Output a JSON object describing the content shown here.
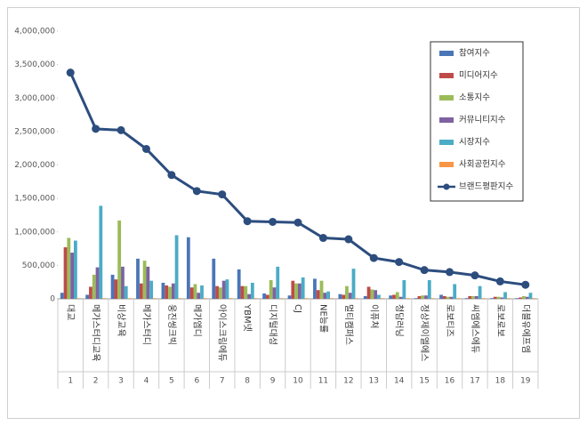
{
  "chart_data": {
    "type": "bar_line",
    "categories": [
      "대교",
      "메가스터디교육",
      "비상교육",
      "메가스터디",
      "웅진씽크빅",
      "메가엠디",
      "아이스크림에듀",
      "YBM넷",
      "디지털대성",
      "CJ",
      "NE능률",
      "멀티캠퍼스",
      "이퓨쳐",
      "청담러닝",
      "정상제이엘에스",
      "로보티즈",
      "씨엠에스에듀",
      "로보로보",
      "더블유에프엠"
    ],
    "ranks": [
      1,
      2,
      3,
      4,
      5,
      6,
      7,
      8,
      9,
      10,
      11,
      12,
      13,
      14,
      15,
      16,
      17,
      18,
      19
    ],
    "series": [
      {
        "name": "참여지수",
        "color": "#4a76b8",
        "kind": "bar",
        "values": [
          90000,
          60000,
          360000,
          600000,
          240000,
          920000,
          600000,
          440000,
          80000,
          50000,
          300000,
          70000,
          40000,
          50000,
          10000,
          60000,
          10000,
          10000,
          10000
        ]
      },
      {
        "name": "미디어지수",
        "color": "#be4b48",
        "kind": "bar",
        "values": [
          770000,
          180000,
          290000,
          230000,
          200000,
          170000,
          190000,
          190000,
          60000,
          270000,
          130000,
          60000,
          180000,
          60000,
          40000,
          40000,
          40000,
          30000,
          20000
        ]
      },
      {
        "name": "소통지수",
        "color": "#9bbb59",
        "kind": "bar",
        "values": [
          910000,
          360000,
          1170000,
          570000,
          180000,
          220000,
          170000,
          190000,
          280000,
          230000,
          270000,
          190000,
          140000,
          100000,
          50000,
          30000,
          40000,
          30000,
          40000
        ]
      },
      {
        "name": "커뮤니티지수",
        "color": "#7e62a1",
        "kind": "bar",
        "values": [
          690000,
          470000,
          480000,
          480000,
          230000,
          90000,
          270000,
          70000,
          170000,
          230000,
          90000,
          90000,
          130000,
          30000,
          50000,
          30000,
          40000,
          20000,
          30000
        ]
      },
      {
        "name": "시장지수",
        "color": "#4bacc6",
        "kind": "bar",
        "values": [
          870000,
          1390000,
          190000,
          270000,
          950000,
          200000,
          290000,
          240000,
          480000,
          320000,
          110000,
          450000,
          60000,
          280000,
          280000,
          220000,
          190000,
          100000,
          90000
        ]
      },
      {
        "name": "사회공헌지수",
        "color": "#f79646",
        "kind": "bar",
        "values": [
          10000,
          10000,
          10000,
          10000,
          10000,
          10000,
          10000,
          10000,
          10000,
          10000,
          10000,
          10000,
          10000,
          10000,
          10000,
          10000,
          10000,
          10000,
          10000
        ]
      },
      {
        "name": "브랜드평판지수",
        "color": "#2c4d7e",
        "kind": "line",
        "values": [
          3380000,
          2540000,
          2520000,
          2240000,
          1850000,
          1610000,
          1560000,
          1160000,
          1150000,
          1140000,
          910000,
          890000,
          610000,
          550000,
          430000,
          400000,
          350000,
          260000,
          210000
        ]
      }
    ],
    "ylim": [
      0,
      4000000
    ],
    "yticks": [
      0,
      {
        "value": 500000,
        "label": "500,000"
      },
      {
        "value": 1000000,
        "label": "1,000,000"
      },
      {
        "value": 1500000,
        "label": "1,500,000"
      },
      {
        "value": 2000000,
        "label": "2,000,000"
      },
      {
        "value": 2500000,
        "label": "2,500,000"
      },
      {
        "value": 3000000,
        "label": "3,000,000"
      },
      {
        "value": 3500000,
        "label": "3,500,000"
      },
      {
        "value": 4000000,
        "label": "4,000,000"
      }
    ]
  }
}
